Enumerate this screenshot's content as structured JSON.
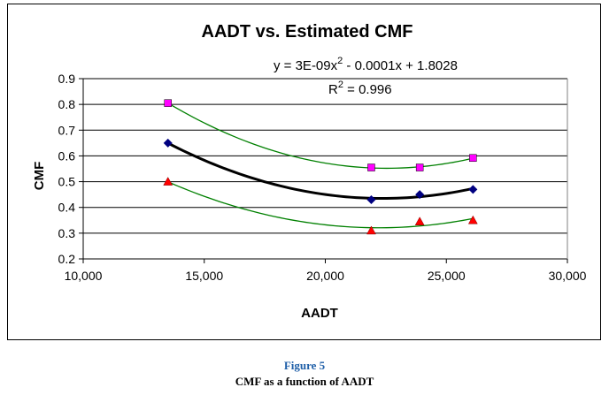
{
  "chart_data": {
    "type": "scatter",
    "title": "AADT vs. Estimated CMF",
    "xlabel": "AADT",
    "ylabel": "CMF",
    "xlim": [
      10000,
      30000
    ],
    "ylim": [
      0.2,
      0.9
    ],
    "x_ticks": [
      "10,000",
      "15,000",
      "20,000",
      "25,000",
      "30,000"
    ],
    "y_ticks": [
      "0.2",
      "0.3",
      "0.4",
      "0.5",
      "0.6",
      "0.7",
      "0.8",
      "0.9"
    ],
    "grid": "horizontal",
    "annotation": {
      "equation_prefix": "y = 3E-09x",
      "equation_exp": "2",
      "equation_suffix": " - 0.0001x + 1.8028",
      "r2_prefix": "R",
      "r2_exp": "2",
      "r2_suffix": " = 0.996"
    },
    "series": [
      {
        "marker": "square",
        "color": "#ff00ff",
        "trend_color": "#008000",
        "x": [
          13500,
          21900,
          23900,
          26100
        ],
        "y": [
          0.805,
          0.555,
          0.555,
          0.592
        ]
      },
      {
        "marker": "diamond",
        "color": "#000080",
        "trend_color": "#000000",
        "x": [
          13500,
          21900,
          23900,
          26100
        ],
        "y": [
          0.65,
          0.43,
          0.45,
          0.47
        ]
      },
      {
        "marker": "triangle",
        "color": "#ff0000",
        "trend_color": "#008000",
        "x": [
          13500,
          21900,
          23900,
          26100
        ],
        "y": [
          0.5,
          0.31,
          0.345,
          0.35
        ]
      }
    ]
  },
  "caption": {
    "figure_label": "Figure 5",
    "description": "CMF as a function of AADT"
  }
}
